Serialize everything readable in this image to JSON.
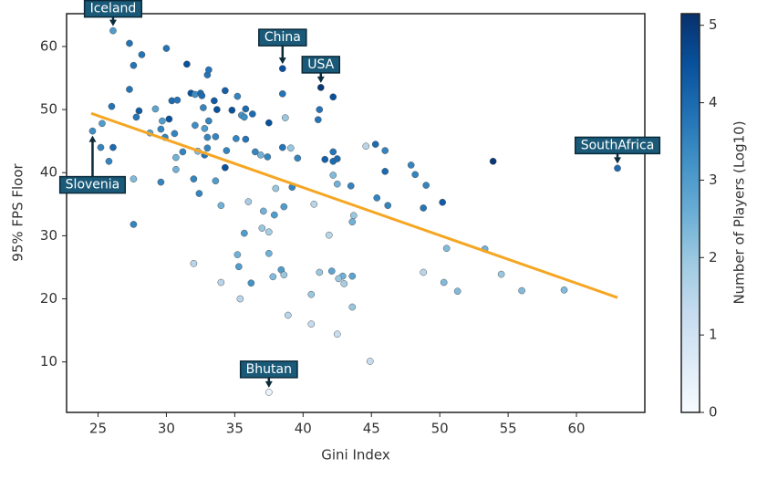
{
  "chart_data": {
    "type": "scatter",
    "xlabel": "Gini Index",
    "ylabel": "95% FPS Floor",
    "xlim": [
      22.7,
      65
    ],
    "ylim": [
      2,
      65.2
    ],
    "xticks": [
      25,
      30,
      35,
      40,
      45,
      50,
      55,
      60
    ],
    "yticks": [
      10,
      20,
      30,
      40,
      50,
      60
    ],
    "colorbar": {
      "label": "Number of Players (Log10)",
      "lim": [
        0,
        5.15
      ],
      "ticks": [
        0,
        1,
        2,
        3,
        4,
        5
      ]
    },
    "colormap": [
      "#f7fbff",
      "#deebf7",
      "#c6dbef",
      "#9ecae1",
      "#6baed6",
      "#4292c6",
      "#2171b5",
      "#08519c",
      "#08306b"
    ],
    "trend_line": {
      "color": "#f5a623",
      "x": [
        24.5,
        63
      ],
      "values": [
        49.4,
        20.2
      ]
    },
    "annotations": [
      {
        "text": "Iceland",
        "x": 26.1,
        "y": 62.5
      },
      {
        "text": "China",
        "x": 38.5,
        "y": 56.5
      },
      {
        "text": "USA",
        "x": 41.3,
        "y": 53.5
      },
      {
        "text": "SouthAfrica",
        "x": 63,
        "y": 40.7
      },
      {
        "text": "Slovenia",
        "x": 24.6,
        "y": 46.6
      },
      {
        "text": "Bhutan",
        "x": 37.5,
        "y": 5.2
      }
    ],
    "x": [
      26.1,
      27.3,
      27.6,
      28.2,
      30,
      31.5,
      27.3,
      26,
      28,
      27.8,
      29.2,
      29.7,
      30.2,
      30.4,
      30.8,
      29.6,
      29.9,
      30.6,
      28.8,
      25.3,
      25.2,
      25.8,
      26.1,
      24.6,
      31.8,
      32.1,
      32.5,
      32.6,
      33,
      33.1,
      33.7,
      33.5,
      34.3,
      34.8,
      35.2,
      35.5,
      35.8,
      35.7,
      36.3,
      37.5,
      32.1,
      32.7,
      33.1,
      32.8,
      33,
      33.6,
      35.1,
      35.8,
      33,
      32.3,
      31.2,
      30.7,
      32.8,
      34.4,
      36.5,
      36.9,
      37.4,
      30.7,
      32,
      27.6,
      29.6,
      34.3,
      33.6,
      32.4,
      34,
      36,
      37.1,
      37.9,
      38.6,
      39.2,
      38,
      38.5,
      39.1,
      39.6,
      38.7,
      41.1,
      41.2,
      42.2,
      38.5,
      38.5,
      41.3,
      41.6,
      42.2,
      42.2,
      42.5,
      42.2,
      42.5,
      43.5,
      44.6,
      45.3,
      46,
      45.4,
      46.2,
      46,
      47.9,
      48.2,
      49,
      48.8,
      50.2,
      53.9,
      63,
      27.6,
      37,
      37.5,
      35.7,
      41.9,
      35.2,
      37.5,
      40.8,
      43.7,
      43.6,
      35.3,
      38.4,
      37.8,
      38.6,
      41.2,
      42.1,
      42.9,
      43.6,
      42.6,
      43,
      36.2,
      34,
      32,
      35.4,
      40.6,
      43.6,
      38.9,
      40.6,
      42.5,
      44.9,
      37.5,
      48.8,
      50.3,
      51.3,
      50.5,
      53.3,
      54.5,
      56,
      59.1
    ],
    "values": [
      62.5,
      60.5,
      57,
      58.7,
      59.7,
      57.2,
      53.2,
      50.5,
      49.8,
      48.8,
      50.1,
      48.2,
      48.5,
      51.4,
      51.5,
      46.9,
      45.6,
      46.2,
      46.3,
      47.8,
      44,
      41.8,
      44,
      46.6,
      52.6,
      52.4,
      52.6,
      52.2,
      55.5,
      56.3,
      50,
      51.4,
      53,
      49.9,
      52.1,
      49.1,
      50.1,
      48.8,
      49.3,
      47.9,
      47.5,
      50.3,
      48.2,
      47,
      45.6,
      45.7,
      45.4,
      45.3,
      43.9,
      43.4,
      43.3,
      42.4,
      42.8,
      43.5,
      43.3,
      42.8,
      42.5,
      40.5,
      39,
      39,
      38.5,
      40.8,
      38.7,
      36.7,
      34.8,
      35.4,
      33.9,
      33.3,
      34.6,
      37.7,
      37.5,
      44,
      43.9,
      42.3,
      48.7,
      48.4,
      50,
      52,
      52.5,
      56.5,
      53.5,
      42.1,
      41.8,
      43.3,
      42.2,
      39.6,
      38.2,
      37.9,
      44.2,
      44.5,
      43.5,
      36,
      34.8,
      40.2,
      41.2,
      39.7,
      38,
      34.4,
      35.3,
      41.8,
      40.7,
      31.8,
      31.2,
      30.6,
      30.4,
      30.1,
      27,
      27.2,
      35,
      33.2,
      32.2,
      25.1,
      24.6,
      23.5,
      23.8,
      24.2,
      24.4,
      23.6,
      23.6,
      23.2,
      22.4,
      22.5,
      22.6,
      25.6,
      20,
      20.7,
      18.7,
      17.4,
      16,
      14.4,
      10.1,
      5.2,
      24.2,
      22.6,
      21.2,
      28,
      27.9,
      23.9,
      21.3,
      21.4
    ],
    "c": [
      3,
      3.8,
      3.8,
      3.8,
      3.8,
      4.5,
      3.8,
      3.8,
      4.3,
      3.8,
      2.8,
      3,
      4.5,
      4,
      3.8,
      3.5,
      3.5,
      3.5,
      2.8,
      3,
      3.5,
      3.5,
      4,
      3.3,
      4.5,
      3.3,
      4,
      4,
      3.8,
      3.8,
      4.5,
      4.3,
      4.2,
      4.5,
      3.5,
      3.2,
      4,
      3.3,
      4,
      4.5,
      3.3,
      3.5,
      3.5,
      3,
      3.5,
      3.5,
      3.5,
      3.8,
      3.5,
      2.3,
      3.5,
      2.5,
      3.8,
      3.5,
      3.5,
      2.5,
      3.5,
      2.5,
      3.5,
      2.3,
      3.5,
      4.5,
      3,
      3.5,
      2.5,
      1.8,
      2.5,
      3,
      3,
      3.5,
      2,
      3.8,
      2,
      3.5,
      2,
      3.8,
      3.8,
      4.5,
      3.8,
      4.5,
      5,
      4.2,
      4,
      3.8,
      4,
      2.3,
      2.5,
      3.5,
      1.5,
      4,
      3.5,
      3.5,
      3.5,
      4,
      3.5,
      3.5,
      3.5,
      3.8,
      4.3,
      5,
      4,
      3.5,
      2,
      1.8,
      3,
      1.5,
      2.5,
      2.5,
      1.5,
      2,
      2.5,
      3,
      3,
      2.3,
      2,
      2,
      2.8,
      2.5,
      2.8,
      2,
      1.8,
      3.2,
      1.5,
      1.5,
      1.5,
      2,
      2,
      1.5,
      1.3,
      1.2,
      1.2,
      0.3,
      1.5,
      2.3,
      2.3,
      2.3,
      2.5,
      2,
      2.3,
      2.3
    ]
  }
}
